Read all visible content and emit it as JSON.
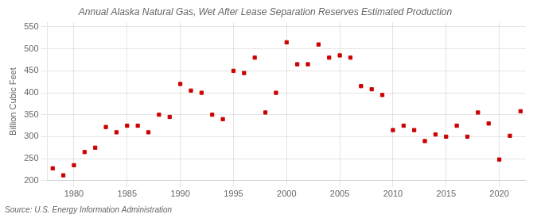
{
  "chart_data": {
    "type": "scatter",
    "title": "Annual Alaska Natural Gas, Wet After Lease Separation Reserves Estimated Production",
    "ylabel": "Billion Cubic Feet",
    "annotation": "Source: U.S. Energy Information Administration",
    "x": [
      1978,
      1979,
      1980,
      1981,
      1982,
      1983,
      1984,
      1985,
      1986,
      1987,
      1988,
      1989,
      1990,
      1991,
      1992,
      1993,
      1994,
      1995,
      1996,
      1997,
      1998,
      1999,
      2000,
      2001,
      2002,
      2003,
      2004,
      2005,
      2006,
      2007,
      2008,
      2009,
      2010,
      2011,
      2012,
      2013,
      2014,
      2015,
      2016,
      2017,
      2018,
      2019,
      2020,
      2021,
      2022
    ],
    "values": [
      228,
      212,
      235,
      265,
      275,
      322,
      310,
      325,
      325,
      310,
      350,
      345,
      420,
      405,
      400,
      350,
      340,
      450,
      445,
      480,
      355,
      400,
      515,
      465,
      465,
      510,
      480,
      485,
      480,
      415,
      408,
      395,
      315,
      325,
      315,
      290,
      305,
      300,
      325,
      300,
      355,
      330,
      248,
      302,
      358
    ],
    "color": "#cc0000",
    "marker": "square",
    "xlim": [
      1977.5,
      2022.5
    ],
    "ylim": [
      200,
      560
    ],
    "xticks": [
      1980,
      1985,
      1990,
      1995,
      2000,
      2005,
      2010,
      2015,
      2020
    ],
    "yticks": [
      200,
      250,
      300,
      350,
      400,
      450,
      500,
      550
    ],
    "grid": true
  }
}
